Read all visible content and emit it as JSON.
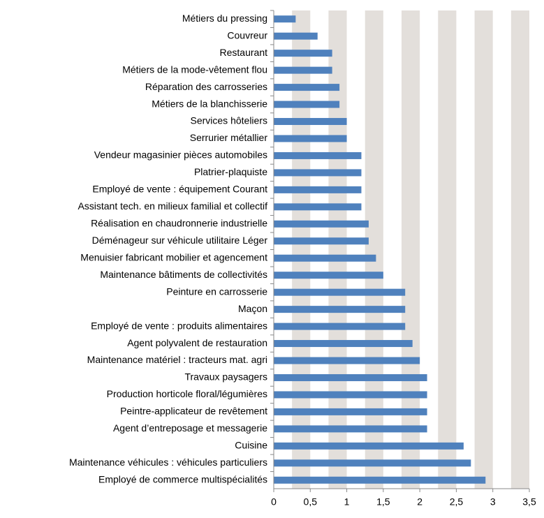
{
  "chart_data": {
    "type": "bar",
    "orientation": "horizontal",
    "categories": [
      "Métiers du pressing",
      "Couvreur",
      "Restaurant",
      "Métiers de la mode-vêtement flou",
      "Réparation des carrosseries",
      "Métiers de la blanchisserie",
      "Services hôteliers",
      "Serrurier métallier",
      "Vendeur magasinier pièces automobiles",
      "Platrier-plaquiste",
      "Employé de vente : équipement Courant",
      "Assistant tech. en milieux familial et collectif",
      "Réalisation en chaudronnerie industrielle",
      "Déménageur sur véhicule utilitaire Léger",
      "Menuisier fabricant mobilier et agencement",
      "Maintenance bâtiments de collectivités",
      "Peinture en carrosserie",
      "Maçon",
      "Employé de vente : produits alimentaires",
      "Agent polyvalent de restauration",
      "Maintenance matériel : tracteurs mat. agri",
      "Travaux paysagers",
      "Production horticole floral/légumières",
      "Peintre-applicateur de revêtement",
      "Agent d’entreposage et messagerie",
      "Cuisine",
      "Maintenance véhicules : véhicules particuliers",
      "Employé de commerce multispécialités"
    ],
    "values": [
      0.3,
      0.6,
      0.8,
      0.8,
      0.9,
      0.9,
      1.0,
      1.0,
      1.2,
      1.2,
      1.2,
      1.2,
      1.3,
      1.3,
      1.4,
      1.5,
      1.8,
      1.8,
      1.8,
      1.9,
      2.0,
      2.1,
      2.1,
      2.1,
      2.1,
      2.6,
      2.7,
      2.9
    ],
    "color": "#4f81bd",
    "xlim": [
      0,
      3.5
    ],
    "xticks": [
      0,
      {
        "value": 0.5,
        "label": "0,5"
      },
      1,
      {
        "value": 1.5,
        "label": "1,5"
      },
      2,
      {
        "value": 2.5,
        "label": "2,5"
      },
      3,
      {
        "value": 3.5,
        "label": "3,5"
      }
    ],
    "grid": true
  }
}
